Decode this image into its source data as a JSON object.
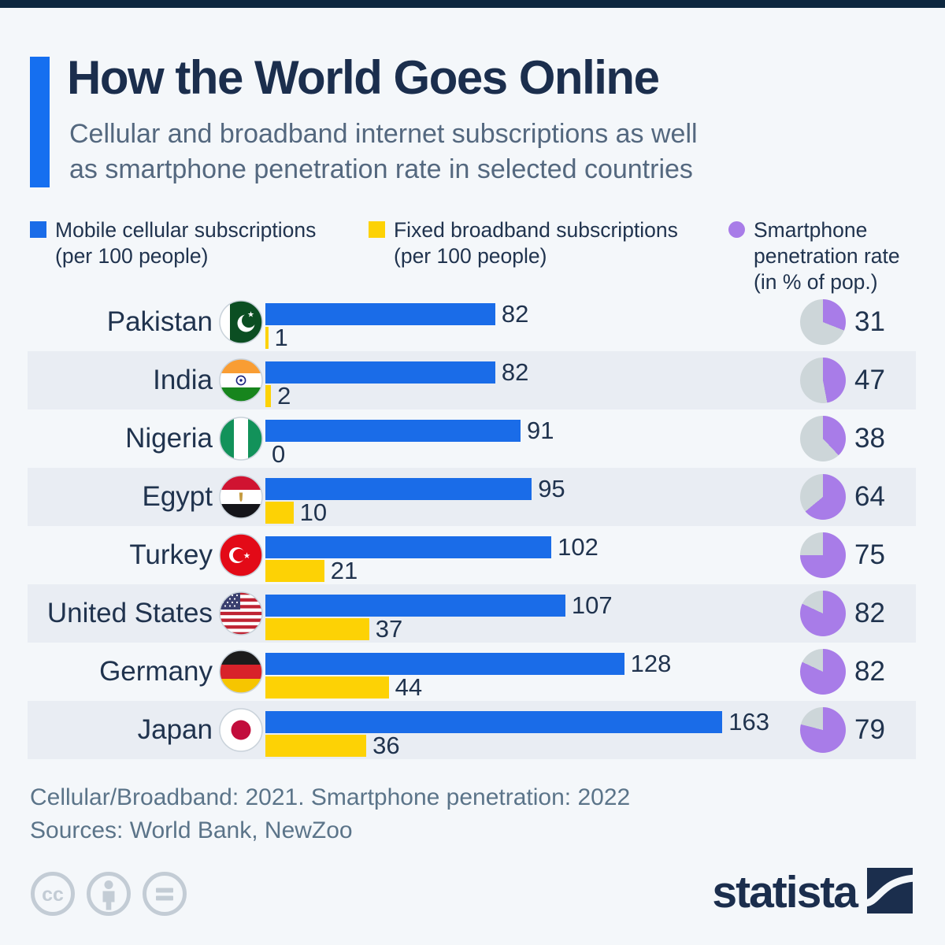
{
  "page": {
    "background": "#f4f7fa",
    "stripe_color": "#e9edf3",
    "top_bar_color": "#0d2740"
  },
  "header": {
    "title": "How the World Goes Online",
    "subtitle_lines": [
      "Cellular and broadband internet subscriptions as well",
      "as smartphone penetration rate in selected countries"
    ],
    "accent_color": "#156ff0",
    "title_color": "#1b2e4d"
  },
  "legend": {
    "items": [
      {
        "shape": "square",
        "color": "#1a6ce8",
        "lines": [
          "Mobile cellular subscriptions",
          "(per 100 people)"
        ]
      },
      {
        "shape": "square",
        "color": "#fdd205",
        "lines": [
          "Fixed broadband subscriptions",
          "(per 100 people)"
        ]
      },
      {
        "shape": "circle",
        "color": "#a87ce8",
        "lines": [
          "Smartphone",
          "penetration rate",
          "(in % of pop.)"
        ]
      }
    ]
  },
  "chart_data": {
    "type": "bar",
    "orientation": "horizontal",
    "categories": [
      "Pakistan",
      "India",
      "Nigeria",
      "Egypt",
      "Turkey",
      "United States",
      "Germany",
      "Japan"
    ],
    "series": [
      {
        "name": "Mobile cellular subscriptions (per 100 people)",
        "color": "#1a6ce8",
        "display": "bar",
        "values": [
          82,
          82,
          91,
          95,
          102,
          107,
          128,
          163
        ]
      },
      {
        "name": "Fixed broadband subscriptions (per 100 people)",
        "color": "#fdd205",
        "display": "bar",
        "values": [
          1,
          2,
          0,
          10,
          21,
          37,
          44,
          36
        ]
      },
      {
        "name": "Smartphone penetration rate (in % of pop.)",
        "color": "#a87ce8",
        "display": "pie",
        "values": [
          31,
          47,
          38,
          64,
          75,
          82,
          82,
          79
        ]
      }
    ],
    "pie_remainder_color": "#cdd6d9",
    "xlim": [
      0,
      163
    ],
    "value_labels": true,
    "grid": false,
    "legend_position": "top"
  },
  "footer": {
    "note": "Cellular/Broadband: 2021. Smartphone penetration: 2022",
    "sources": "Sources: World Bank, NewZoo"
  },
  "license_bar": {
    "icons": [
      "cc-icon",
      "person-icon",
      "equals-icon"
    ],
    "icon_color": "#c3ccd5"
  },
  "branding": {
    "logo_text": "statista",
    "logo_color": "#1b2e4d"
  }
}
